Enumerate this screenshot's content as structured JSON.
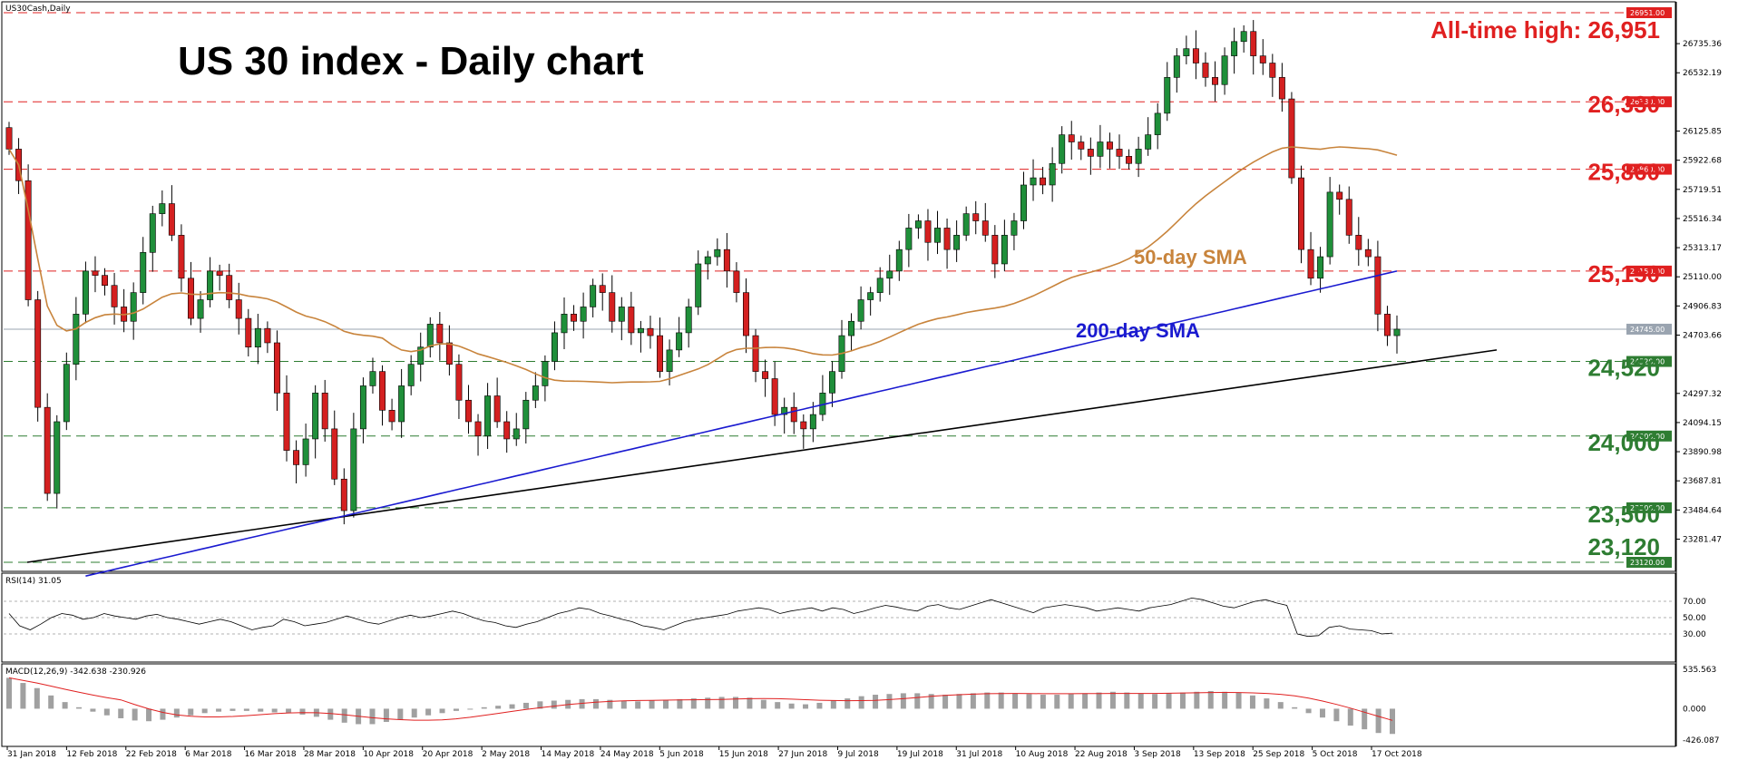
{
  "chart_data": [
    {
      "type": "candlestick",
      "symbol_label": "US30Cash,Daily",
      "title": "US 30 index - Daily chart",
      "ylim": [
        23120,
        26951
      ],
      "y_ticks": [
        "26735.36",
        "26532.19",
        "26125.85",
        "25922.68",
        "25719.51",
        "25516.34",
        "25313.17",
        "25110.00",
        "24906.83",
        "24703.66",
        "24297.32",
        "24094.15",
        "23890.98",
        "23687.81",
        "23484.64",
        "23281.47"
      ],
      "x_ticks": [
        "31 Jan 2018",
        "12 Feb 2018",
        "22 Feb 2018",
        "6 Mar 2018",
        "16 Mar 2018",
        "28 Mar 2018",
        "10 Apr 2018",
        "20 Apr 2018",
        "2 May 2018",
        "14 May 2018",
        "24 May 2018",
        "5 Jun 2018",
        "15 Jun 2018",
        "27 Jun 2018",
        "9 Jul 2018",
        "19 Jul 2018",
        "31 Jul 2018",
        "10 Aug 2018",
        "22 Aug 2018",
        "3 Sep 2018",
        "13 Sep 2018",
        "25 Sep 2018",
        "5 Oct 2018",
        "17 Oct 2018"
      ],
      "price_levels": [
        {
          "value": 26951,
          "label": "All-time high: 26,951",
          "tag": "26951.00",
          "color": "#e02020",
          "style": "dashed"
        },
        {
          "value": 26330,
          "label": "26,330",
          "tag": "26330.00",
          "color": "#e02020",
          "style": "dashed"
        },
        {
          "value": 25860,
          "label": "25,860",
          "tag": "25860.00",
          "color": "#e02020",
          "style": "dashed"
        },
        {
          "value": 25150,
          "label": "25,150",
          "tag": "25150.00",
          "color": "#e02020",
          "style": "dashed"
        },
        {
          "value": 24520,
          "label": "24,520",
          "tag": "24520.00",
          "color": "#2e7d32",
          "style": "dashed"
        },
        {
          "value": 24000,
          "label": "24,000",
          "tag": "24000.00",
          "color": "#2e7d32",
          "style": "dashed"
        },
        {
          "value": 23500,
          "label": "23,500",
          "tag": "23500.00",
          "color": "#2e7d32",
          "style": "dashed"
        },
        {
          "value": 23120,
          "label": "23,120",
          "tag": "23120.00",
          "color": "#2e7d32",
          "style": "dashed"
        }
      ],
      "current_price": {
        "value": 24745,
        "tag": "24745.00"
      },
      "annotations": [
        {
          "text": "50-day SMA",
          "color": "#c8843c"
        },
        {
          "text": "200-day SMA",
          "color": "#1a1ad0"
        }
      ],
      "series": [
        {
          "name": "Price",
          "color_up": "#1f8f3a",
          "color_down": "#d42020",
          "close": [
            26000,
            25780,
            24950,
            24200,
            23600,
            24100,
            24500,
            24850,
            25150,
            25120,
            25050,
            24900,
            24800,
            25000,
            25280,
            25550,
            25620,
            25400,
            25100,
            24820,
            24950,
            25150,
            25120,
            24950,
            24820,
            24620,
            24750,
            24650,
            24300,
            23900,
            23800,
            23980,
            24300,
            24050,
            23700,
            23480,
            24050,
            24350,
            24450,
            24180,
            24100,
            24350,
            24500,
            24620,
            24780,
            24650,
            24500,
            24250,
            24100,
            24000,
            24280,
            24100,
            23980,
            24050,
            24250,
            24350,
            24520,
            24720,
            24850,
            24800,
            24900,
            25050,
            25000,
            24800,
            24900,
            24720,
            24750,
            24700,
            24450,
            24600,
            24720,
            24900,
            25200,
            25250,
            25300,
            25150,
            25000,
            24700,
            24450,
            24400,
            24150,
            24200,
            24100,
            24050,
            24150,
            24300,
            24450,
            24700,
            24800,
            24950,
            25000,
            25100,
            25150,
            25300,
            25450,
            25500,
            25350,
            25450,
            25300,
            25400,
            25550,
            25500,
            25400,
            25200,
            25400,
            25500,
            25750,
            25800,
            25750,
            25900,
            26100,
            26050,
            26000,
            25950,
            26050,
            26000,
            25950,
            25900,
            26000,
            26100,
            26250,
            26500,
            26650,
            26700,
            26600,
            26500,
            26450,
            26650,
            26750,
            26820,
            26650,
            26600,
            26500,
            26350,
            25800,
            25300,
            25100,
            25250,
            25700,
            25650,
            25400,
            25300,
            25250,
            24850,
            24700,
            24745
          ]
        },
        {
          "name": "50-day SMA",
          "color": "#c8843c"
        },
        {
          "name": "200-day SMA",
          "color": "#1a1ad0"
        }
      ],
      "trendline": {
        "from": [
          "31 Jan 2018",
          23120
        ],
        "to": [
          "24 Oct 2018",
          24600
        ],
        "color": "#000000"
      }
    },
    {
      "type": "line",
      "label": "RSI(14) 31.05",
      "ylim": [
        0,
        100
      ],
      "y_ticks": [
        "70.00",
        "50.00",
        "30.00"
      ],
      "series": [
        {
          "values": [
            55,
            40,
            35,
            42,
            50,
            55,
            53,
            48,
            50,
            55,
            52,
            50,
            48,
            52,
            54,
            50,
            48,
            45,
            42,
            45,
            48,
            45,
            40,
            35,
            38,
            40,
            48,
            45,
            40,
            42,
            44,
            48,
            52,
            48,
            44,
            42,
            46,
            50,
            53,
            50,
            52,
            55,
            58,
            55,
            50,
            46,
            44,
            40,
            38,
            42,
            45,
            50,
            55,
            58,
            62,
            60,
            55,
            52,
            48,
            45,
            40,
            38,
            35,
            40,
            45,
            48,
            50,
            52,
            54,
            58,
            60,
            62,
            60,
            55,
            58,
            60,
            62,
            58,
            62,
            60,
            55,
            58,
            62,
            65,
            63,
            60,
            58,
            64,
            66,
            62,
            60,
            64,
            68,
            72,
            68,
            64,
            60,
            56,
            62,
            64,
            66,
            64,
            62,
            58,
            60,
            62,
            60,
            58,
            62,
            64,
            66,
            70,
            74,
            72,
            68,
            64,
            62,
            66,
            70,
            72,
            68,
            65,
            30,
            27,
            28,
            38,
            40,
            36,
            35,
            34,
            30,
            31
          ]
        }
      ]
    },
    {
      "type": "bar",
      "label": "MACD(12,26,9) -342.638 -230.926",
      "ylim": [
        -426.087,
        535.563
      ],
      "y_ticks": [
        "535.563",
        "0.000",
        "-426.087"
      ],
      "series": [
        {
          "name": "MACD",
          "color": "#a0a0a0",
          "values": [
            420,
            350,
            280,
            180,
            90,
            20,
            -40,
            -90,
            -130,
            -160,
            -170,
            -150,
            -120,
            -90,
            -60,
            -40,
            -30,
            -30,
            -40,
            -50,
            -60,
            -80,
            -110,
            -150,
            -190,
            -210,
            -210,
            -180,
            -150,
            -120,
            -90,
            -60,
            -30,
            0,
            20,
            40,
            60,
            80,
            100,
            110,
            120,
            130,
            130,
            120,
            110,
            100,
            110,
            120,
            130,
            140,
            150,
            160,
            160,
            150,
            120,
            90,
            70,
            60,
            80,
            110,
            140,
            170,
            190,
            200,
            210,
            210,
            200,
            190,
            200,
            210,
            220,
            220,
            210,
            200,
            190,
            190,
            200,
            210,
            220,
            230,
            220,
            210,
            200,
            210,
            220,
            230,
            240,
            230,
            220,
            180,
            140,
            90,
            20,
            -60,
            -120,
            -170,
            -230,
            -280,
            -330,
            -343
          ]
        },
        {
          "name": "Signal",
          "color": "#e02020"
        }
      ]
    }
  ]
}
